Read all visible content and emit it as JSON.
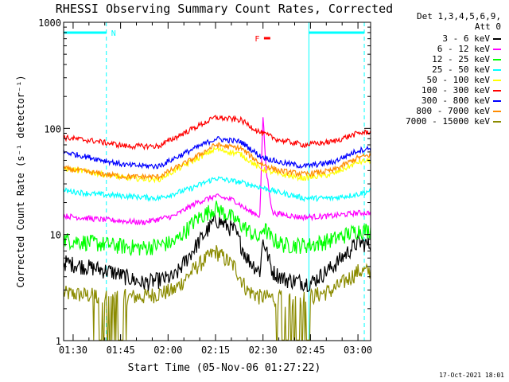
{
  "chart_data": {
    "type": "line",
    "title": "RHESSI Observing Summary Count Rates, Corrected",
    "xlabel": "Start Time (05-Nov-06 01:27:22)",
    "ylabel": "Corrected Count Rate (s⁻¹ detector⁻¹)",
    "yscale": "log",
    "ylim": [
      1,
      1000
    ],
    "xlim_minutes_after_0127": [
      0,
      97
    ],
    "x_tick_labels": [
      "01:30",
      "01:45",
      "02:00",
      "02:15",
      "02:30",
      "02:45",
      "03:00"
    ],
    "x_tick_minutes_after_0127": [
      3,
      18,
      33,
      48,
      63,
      78,
      93
    ],
    "y_tick_labels": [
      "1",
      "10",
      "100",
      "1000"
    ],
    "y_tick_values": [
      1,
      10,
      100,
      1000
    ],
    "legend_header": [
      "Det 1,3,4,5,6,9,",
      "Att 0"
    ],
    "series": [
      {
        "name": "3 - 6 keV",
        "color": "#000000",
        "anchors": [
          [
            0,
            5.5
          ],
          [
            15,
            4.5
          ],
          [
            25,
            3.5
          ],
          [
            35,
            4
          ],
          [
            42,
            8
          ],
          [
            48,
            14
          ],
          [
            54,
            11
          ],
          [
            58,
            6
          ],
          [
            62,
            4.5
          ],
          [
            63,
            9
          ],
          [
            66,
            4.5
          ],
          [
            70,
            3.8
          ],
          [
            78,
            3.5
          ],
          [
            85,
            5
          ],
          [
            93,
            8.5
          ],
          [
            97,
            8
          ]
        ]
      },
      {
        "name": "6 - 12 keV",
        "color": "#ff00ff",
        "anchors": [
          [
            0,
            15
          ],
          [
            10,
            14
          ],
          [
            25,
            13
          ],
          [
            35,
            15
          ],
          [
            42,
            20
          ],
          [
            48,
            23
          ],
          [
            54,
            21
          ],
          [
            58,
            17
          ],
          [
            62,
            15
          ],
          [
            63,
            130
          ],
          [
            64,
            40
          ],
          [
            66,
            16
          ],
          [
            75,
            14.5
          ],
          [
            85,
            15
          ],
          [
            93,
            16
          ],
          [
            97,
            16
          ]
        ]
      },
      {
        "name": "12 - 25 keV",
        "color": "#00ff00",
        "anchors": [
          [
            0,
            9
          ],
          [
            15,
            8
          ],
          [
            25,
            7.5
          ],
          [
            35,
            8.5
          ],
          [
            42,
            14
          ],
          [
            48,
            18
          ],
          [
            54,
            14
          ],
          [
            60,
            10
          ],
          [
            62,
            9
          ],
          [
            63,
            12
          ],
          [
            66,
            9
          ],
          [
            70,
            8
          ],
          [
            78,
            8
          ],
          [
            85,
            9
          ],
          [
            93,
            11
          ],
          [
            97,
            11
          ]
        ]
      },
      {
        "name": "25 - 50 keV",
        "color": "#00ffff",
        "anchors": [
          [
            0,
            26
          ],
          [
            10,
            24
          ],
          [
            20,
            23
          ],
          [
            30,
            22
          ],
          [
            40,
            27
          ],
          [
            48,
            34
          ],
          [
            56,
            31
          ],
          [
            62,
            28
          ],
          [
            68,
            25
          ],
          [
            76,
            22
          ],
          [
            85,
            22
          ],
          [
            93,
            24
          ],
          [
            97,
            26
          ]
        ]
      },
      {
        "name": "50 - 100 keV",
        "color": "#ffff00",
        "anchors": [
          [
            0,
            42
          ],
          [
            10,
            38
          ],
          [
            20,
            34
          ],
          [
            30,
            33
          ],
          [
            40,
            48
          ],
          [
            48,
            64
          ],
          [
            56,
            57
          ],
          [
            62,
            42
          ],
          [
            68,
            37
          ],
          [
            76,
            34
          ],
          [
            85,
            37
          ],
          [
            93,
            48
          ],
          [
            97,
            50
          ]
        ]
      },
      {
        "name": "100 - 300 keV",
        "color": "#ff0000",
        "anchors": [
          [
            0,
            82
          ],
          [
            10,
            76
          ],
          [
            20,
            68
          ],
          [
            30,
            68
          ],
          [
            40,
            97
          ],
          [
            48,
            127
          ],
          [
            56,
            120
          ],
          [
            62,
            92
          ],
          [
            68,
            78
          ],
          [
            76,
            70
          ],
          [
            85,
            75
          ],
          [
            93,
            90
          ],
          [
            97,
            93
          ]
        ]
      },
      {
        "name": "300 - 800 keV",
        "color": "#0000ff",
        "anchors": [
          [
            0,
            60
          ],
          [
            10,
            52
          ],
          [
            20,
            45
          ],
          [
            30,
            44
          ],
          [
            40,
            62
          ],
          [
            48,
            80
          ],
          [
            56,
            75
          ],
          [
            62,
            55
          ],
          [
            68,
            48
          ],
          [
            76,
            44
          ],
          [
            85,
            48
          ],
          [
            93,
            62
          ],
          [
            97,
            65
          ]
        ]
      },
      {
        "name": "800 - 7000 keV",
        "color": "#ff8c00",
        "anchors": [
          [
            0,
            42
          ],
          [
            10,
            38
          ],
          [
            20,
            35
          ],
          [
            30,
            35
          ],
          [
            40,
            50
          ],
          [
            48,
            70
          ],
          [
            56,
            65
          ],
          [
            62,
            47
          ],
          [
            68,
            40
          ],
          [
            76,
            37
          ],
          [
            85,
            40
          ],
          [
            93,
            53
          ],
          [
            97,
            56
          ]
        ]
      },
      {
        "name": "7000 - 15000 keV",
        "color": "#8b8b00",
        "anchors": [
          [
            0,
            2.8
          ],
          [
            15,
            2.6
          ],
          [
            25,
            2.6
          ],
          [
            35,
            3
          ],
          [
            42,
            5
          ],
          [
            48,
            7
          ],
          [
            54,
            5
          ],
          [
            58,
            3
          ],
          [
            62,
            2.6
          ],
          [
            70,
            2.5
          ],
          [
            78,
            2.6
          ],
          [
            85,
            3
          ],
          [
            93,
            4.5
          ],
          [
            97,
            4.5
          ]
        ]
      }
    ],
    "annotations": [
      {
        "text": "N",
        "color": "#00ffff"
      },
      {
        "text": "F",
        "color": "#ff0000"
      }
    ]
  },
  "footer": {
    "timestamp": "17-Oct-2021 18:01"
  }
}
